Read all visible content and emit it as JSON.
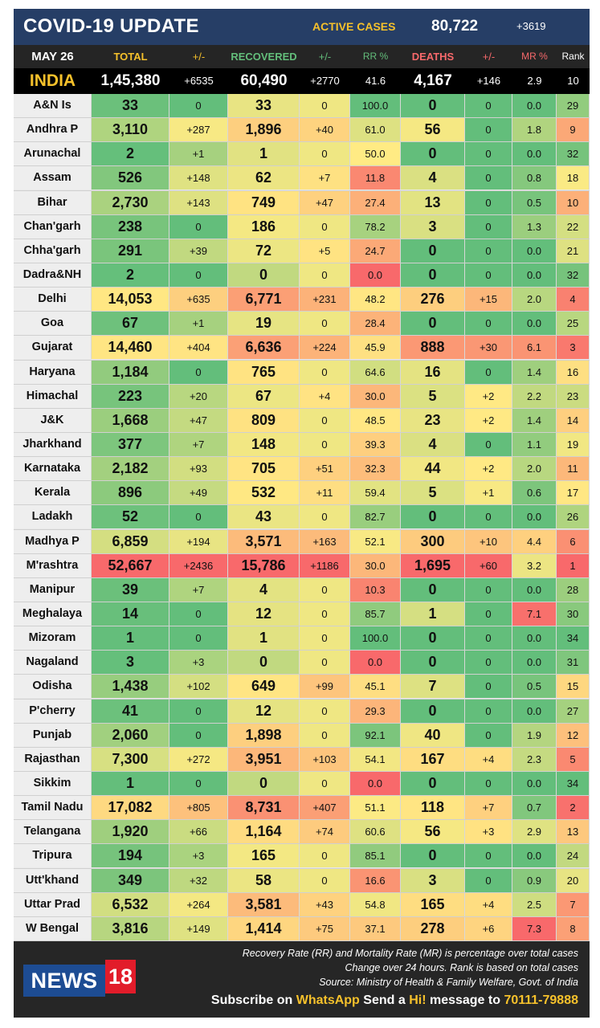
{
  "header": {
    "title": "COVID-19 UPDATE",
    "active_label": "ACTIVE CASES",
    "active_value": "80,722",
    "active_delta": "+3619"
  },
  "columns": {
    "date": "MAY 26",
    "total": "TOTAL",
    "total_delta": "+/-",
    "recovered": "RECOVERED",
    "recovered_delta": "+/-",
    "rr": "RR %",
    "deaths": "DEATHS",
    "deaths_delta": "+/-",
    "mr": "MR %",
    "rank": "Rank"
  },
  "colors": {
    "green": "#63be7b",
    "yellow": "#ffeb84",
    "red": "#f8696b",
    "title_bar": "#263e66",
    "accent_yellow": "#f6c12b",
    "header_total": "#f6c12b",
    "header_recovered": "#63be7b",
    "header_deaths": "#f8696b"
  },
  "india": {
    "name": "INDIA",
    "total": "1,45,380",
    "total_delta": "+6535",
    "recovered": "60,490",
    "recovered_delta": "+2770",
    "rr": "41.6",
    "deaths": "4,167",
    "deaths_delta": "+146",
    "mr": "2.9",
    "rank": "10"
  },
  "states": [
    {
      "name": "A&N Is",
      "total": "33",
      "td": "0",
      "rec": "33",
      "rd": "0",
      "rr": "100.0",
      "deaths": "0",
      "dd": "0",
      "mr": "0.0",
      "rank": "29"
    },
    {
      "name": "Andhra P",
      "total": "3,110",
      "td": "+287",
      "rec": "1,896",
      "rd": "+40",
      "rr": "61.0",
      "deaths": "56",
      "dd": "0",
      "mr": "1.8",
      "rank": "9"
    },
    {
      "name": "Arunachal",
      "total": "2",
      "td": "+1",
      "rec": "1",
      "rd": "0",
      "rr": "50.0",
      "deaths": "0",
      "dd": "0",
      "mr": "0.0",
      "rank": "32"
    },
    {
      "name": "Assam",
      "total": "526",
      "td": "+148",
      "rec": "62",
      "rd": "+7",
      "rr": "11.8",
      "deaths": "4",
      "dd": "0",
      "mr": "0.8",
      "rank": "18"
    },
    {
      "name": "Bihar",
      "total": "2,730",
      "td": "+143",
      "rec": "749",
      "rd": "+47",
      "rr": "27.4",
      "deaths": "13",
      "dd": "0",
      "mr": "0.5",
      "rank": "10"
    },
    {
      "name": "Chan'garh",
      "total": "238",
      "td": "0",
      "rec": "186",
      "rd": "0",
      "rr": "78.2",
      "deaths": "3",
      "dd": "0",
      "mr": "1.3",
      "rank": "22"
    },
    {
      "name": "Chha'garh",
      "total": "291",
      "td": "+39",
      "rec": "72",
      "rd": "+5",
      "rr": "24.7",
      "deaths": "0",
      "dd": "0",
      "mr": "0.0",
      "rank": "21"
    },
    {
      "name": "Dadra&NH",
      "total": "2",
      "td": "0",
      "rec": "0",
      "rd": "0",
      "rr": "0.0",
      "deaths": "0",
      "dd": "0",
      "mr": "0.0",
      "rank": "32"
    },
    {
      "name": "Delhi",
      "total": "14,053",
      "td": "+635",
      "rec": "6,771",
      "rd": "+231",
      "rr": "48.2",
      "deaths": "276",
      "dd": "+15",
      "mr": "2.0",
      "rank": "4"
    },
    {
      "name": "Goa",
      "total": "67",
      "td": "+1",
      "rec": "19",
      "rd": "0",
      "rr": "28.4",
      "deaths": "0",
      "dd": "0",
      "mr": "0.0",
      "rank": "25"
    },
    {
      "name": "Gujarat",
      "total": "14,460",
      "td": "+404",
      "rec": "6,636",
      "rd": "+224",
      "rr": "45.9",
      "deaths": "888",
      "dd": "+30",
      "mr": "6.1",
      "rank": "3"
    },
    {
      "name": "Haryana",
      "total": "1,184",
      "td": "0",
      "rec": "765",
      "rd": "0",
      "rr": "64.6",
      "deaths": "16",
      "dd": "0",
      "mr": "1.4",
      "rank": "16"
    },
    {
      "name": "Himachal",
      "total": "223",
      "td": "+20",
      "rec": "67",
      "rd": "+4",
      "rr": "30.0",
      "deaths": "5",
      "dd": "+2",
      "mr": "2.2",
      "rank": "23"
    },
    {
      "name": "J&K",
      "total": "1,668",
      "td": "+47",
      "rec": "809",
      "rd": "0",
      "rr": "48.5",
      "deaths": "23",
      "dd": "+2",
      "mr": "1.4",
      "rank": "14"
    },
    {
      "name": "Jharkhand",
      "total": "377",
      "td": "+7",
      "rec": "148",
      "rd": "0",
      "rr": "39.3",
      "deaths": "4",
      "dd": "0",
      "mr": "1.1",
      "rank": "19"
    },
    {
      "name": "Karnataka",
      "total": "2,182",
      "td": "+93",
      "rec": "705",
      "rd": "+51",
      "rr": "32.3",
      "deaths": "44",
      "dd": "+2",
      "mr": "2.0",
      "rank": "11"
    },
    {
      "name": "Kerala",
      "total": "896",
      "td": "+49",
      "rec": "532",
      "rd": "+11",
      "rr": "59.4",
      "deaths": "5",
      "dd": "+1",
      "mr": "0.6",
      "rank": "17"
    },
    {
      "name": "Ladakh",
      "total": "52",
      "td": "0",
      "rec": "43",
      "rd": "0",
      "rr": "82.7",
      "deaths": "0",
      "dd": "0",
      "mr": "0.0",
      "rank": "26"
    },
    {
      "name": "Madhya P",
      "total": "6,859",
      "td": "+194",
      "rec": "3,571",
      "rd": "+163",
      "rr": "52.1",
      "deaths": "300",
      "dd": "+10",
      "mr": "4.4",
      "rank": "6"
    },
    {
      "name": "M'rashtra",
      "total": "52,667",
      "td": "+2436",
      "rec": "15,786",
      "rd": "+1186",
      "rr": "30.0",
      "deaths": "1,695",
      "dd": "+60",
      "mr": "3.2",
      "rank": "1"
    },
    {
      "name": "Manipur",
      "total": "39",
      "td": "+7",
      "rec": "4",
      "rd": "0",
      "rr": "10.3",
      "deaths": "0",
      "dd": "0",
      "mr": "0.0",
      "rank": "28"
    },
    {
      "name": "Meghalaya",
      "total": "14",
      "td": "0",
      "rec": "12",
      "rd": "0",
      "rr": "85.7",
      "deaths": "1",
      "dd": "0",
      "mr": "7.1",
      "rank": "30"
    },
    {
      "name": "Mizoram",
      "total": "1",
      "td": "0",
      "rec": "1",
      "rd": "0",
      "rr": "100.0",
      "deaths": "0",
      "dd": "0",
      "mr": "0.0",
      "rank": "34"
    },
    {
      "name": "Nagaland",
      "total": "3",
      "td": "+3",
      "rec": "0",
      "rd": "0",
      "rr": "0.0",
      "deaths": "0",
      "dd": "0",
      "mr": "0.0",
      "rank": "31"
    },
    {
      "name": "Odisha",
      "total": "1,438",
      "td": "+102",
      "rec": "649",
      "rd": "+99",
      "rr": "45.1",
      "deaths": "7",
      "dd": "0",
      "mr": "0.5",
      "rank": "15"
    },
    {
      "name": "P'cherry",
      "total": "41",
      "td": "0",
      "rec": "12",
      "rd": "0",
      "rr": "29.3",
      "deaths": "0",
      "dd": "0",
      "mr": "0.0",
      "rank": "27"
    },
    {
      "name": "Punjab",
      "total": "2,060",
      "td": "0",
      "rec": "1,898",
      "rd": "0",
      "rr": "92.1",
      "deaths": "40",
      "dd": "0",
      "mr": "1.9",
      "rank": "12"
    },
    {
      "name": "Rajasthan",
      "total": "7,300",
      "td": "+272",
      "rec": "3,951",
      "rd": "+103",
      "rr": "54.1",
      "deaths": "167",
      "dd": "+4",
      "mr": "2.3",
      "rank": "5"
    },
    {
      "name": "Sikkim",
      "total": "1",
      "td": "0",
      "rec": "0",
      "rd": "0",
      "rr": "0.0",
      "deaths": "0",
      "dd": "0",
      "mr": "0.0",
      "rank": "34"
    },
    {
      "name": "Tamil Nadu",
      "total": "17,082",
      "td": "+805",
      "rec": "8,731",
      "rd": "+407",
      "rr": "51.1",
      "deaths": "118",
      "dd": "+7",
      "mr": "0.7",
      "rank": "2"
    },
    {
      "name": "Telangana",
      "total": "1,920",
      "td": "+66",
      "rec": "1,164",
      "rd": "+74",
      "rr": "60.6",
      "deaths": "56",
      "dd": "+3",
      "mr": "2.9",
      "rank": "13"
    },
    {
      "name": "Tripura",
      "total": "194",
      "td": "+3",
      "rec": "165",
      "rd": "0",
      "rr": "85.1",
      "deaths": "0",
      "dd": "0",
      "mr": "0.0",
      "rank": "24"
    },
    {
      "name": "Utt'khand",
      "total": "349",
      "td": "+32",
      "rec": "58",
      "rd": "0",
      "rr": "16.6",
      "deaths": "3",
      "dd": "0",
      "mr": "0.9",
      "rank": "20"
    },
    {
      "name": "Uttar Prad",
      "total": "6,532",
      "td": "+264",
      "rec": "3,581",
      "rd": "+43",
      "rr": "54.8",
      "deaths": "165",
      "dd": "+4",
      "mr": "2.5",
      "rank": "7"
    },
    {
      "name": "W Bengal",
      "total": "3,816",
      "td": "+149",
      "rec": "1,414",
      "rd": "+75",
      "rr": "37.1",
      "deaths": "278",
      "dd": "+6",
      "mr": "7.3",
      "rank": "8"
    }
  ],
  "footer": {
    "note1": "Recovery Rate (RR) and Mortality Rate (MR) is percentage over total cases",
    "note2": "Change over 24 hours. Rank is based on total cases",
    "note3": "Source: Ministry of Health & Family Welfare, Govt. of India",
    "subscribe_pre": "Subscribe on ",
    "subscribe_app": "WhatsApp",
    "subscribe_mid": " Send a ",
    "subscribe_hi": "Hi!",
    "subscribe_post": " message to ",
    "subscribe_number": "70111-79888",
    "logo_text": "NEWS",
    "logo_number": "18"
  }
}
